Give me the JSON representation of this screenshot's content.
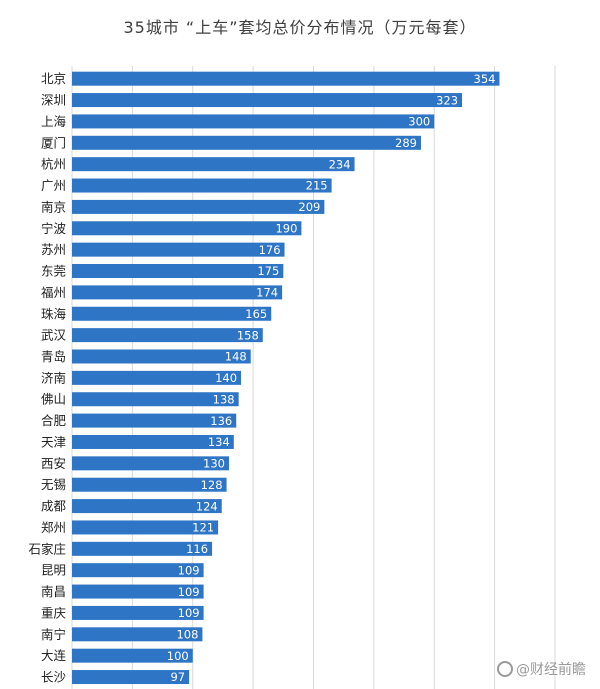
{
  "chart_data": {
    "type": "bar",
    "orientation": "horizontal",
    "title": "35城市 “上车”套均总价分布情况（万元每套）",
    "categories": [
      "北京",
      "深圳",
      "上海",
      "厦门",
      "杭州",
      "广州",
      "南京",
      "宁波",
      "苏州",
      "东莞",
      "福州",
      "珠海",
      "武汉",
      "青岛",
      "济南",
      "佛山",
      "合肥",
      "天津",
      "西安",
      "无锡",
      "成都",
      "郑州",
      "石家庄",
      "昆明",
      "南昌",
      "重庆",
      "南宁",
      "大连",
      "长沙"
    ],
    "values": [
      354,
      323,
      300,
      289,
      234,
      215,
      209,
      190,
      176,
      175,
      174,
      165,
      158,
      148,
      140,
      138,
      136,
      134,
      130,
      128,
      124,
      121,
      116,
      109,
      109,
      109,
      108,
      100,
      97
    ],
    "xlim": [
      0,
      400
    ],
    "grid": true,
    "bar_color": "#2e75c6",
    "value_label_color": "#ffffff"
  },
  "watermark": {
    "icon": "chat-bubble-icon",
    "text": "@财经前瞻"
  }
}
